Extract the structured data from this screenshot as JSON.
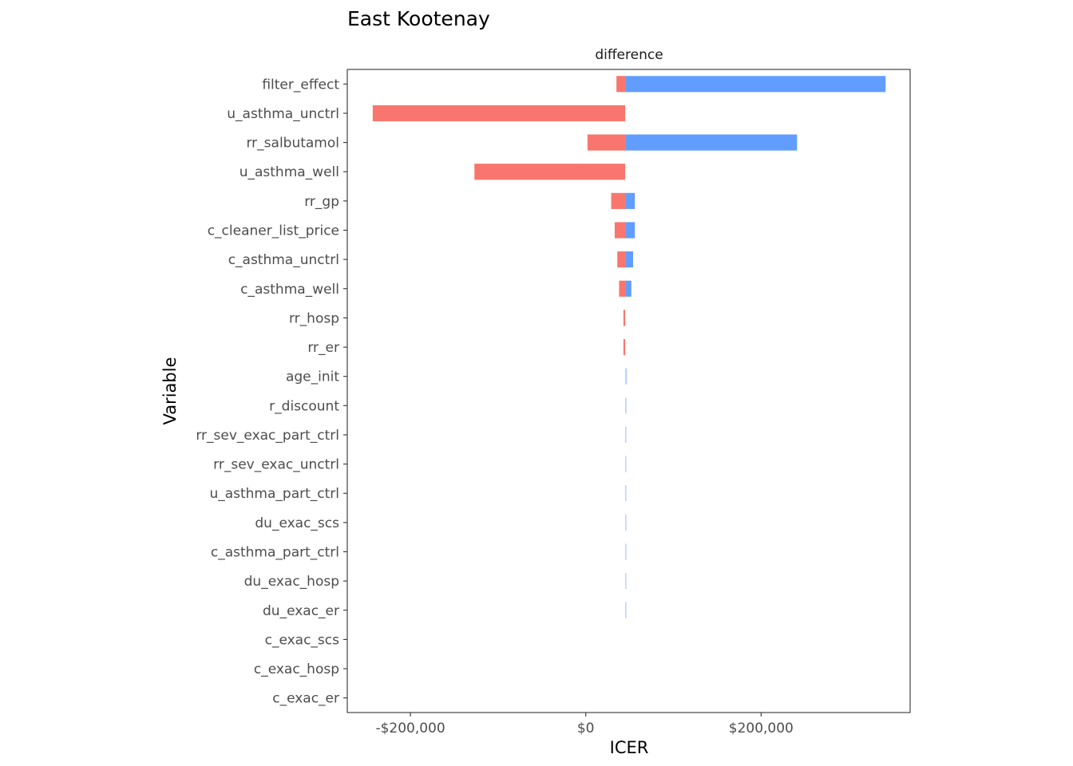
{
  "chart_data": {
    "type": "bar",
    "orientation": "horizontal",
    "chart_kind": "tornado",
    "title": "East Kootenay",
    "facet_label": "difference",
    "xlabel": "ICER",
    "ylabel": "Variable",
    "baseline": 45000,
    "xlim": [
      -272000,
      370000
    ],
    "x_ticks": [
      {
        "value": -200000,
        "label": "-$200,000"
      },
      {
        "value": 0,
        "label": "$0"
      },
      {
        "value": 200000,
        "label": "$200,000"
      }
    ],
    "grid": false,
    "colors": {
      "low": "#F8766D",
      "high": "#619CFF",
      "panel_border": "#333333",
      "axis_text": "#4d4d4d"
    },
    "series": [
      {
        "name": "low",
        "values": [
          35000,
          -243000,
          2000,
          -127000,
          29000,
          33000,
          36000,
          38000,
          43000,
          43000,
          45000,
          45000,
          45000,
          45000,
          45000,
          45000,
          45000,
          45000,
          45000,
          45000,
          45000,
          45000
        ]
      },
      {
        "name": "high",
        "values": [
          342000,
          45000,
          241000,
          45000,
          56000,
          56000,
          54000,
          52000,
          45000,
          45000,
          47000,
          46500,
          46300,
          46200,
          46000,
          45600,
          45400,
          45300,
          45200,
          45000,
          45000,
          45000
        ]
      }
    ],
    "categories": [
      "filter_effect",
      "u_asthma_unctrl",
      "rr_salbutamol",
      "u_asthma_well",
      "rr_gp",
      "c_cleaner_list_price",
      "c_asthma_unctrl",
      "c_asthma_well",
      "rr_hosp",
      "rr_er",
      "age_init",
      "r_discount",
      "rr_sev_exac_part_ctrl",
      "rr_sev_exac_unctrl",
      "u_asthma_part_ctrl",
      "du_exac_scs",
      "c_asthma_part_ctrl",
      "du_exac_hosp",
      "du_exac_er",
      "c_exac_scs",
      "c_exac_hosp",
      "c_exac_er"
    ]
  }
}
